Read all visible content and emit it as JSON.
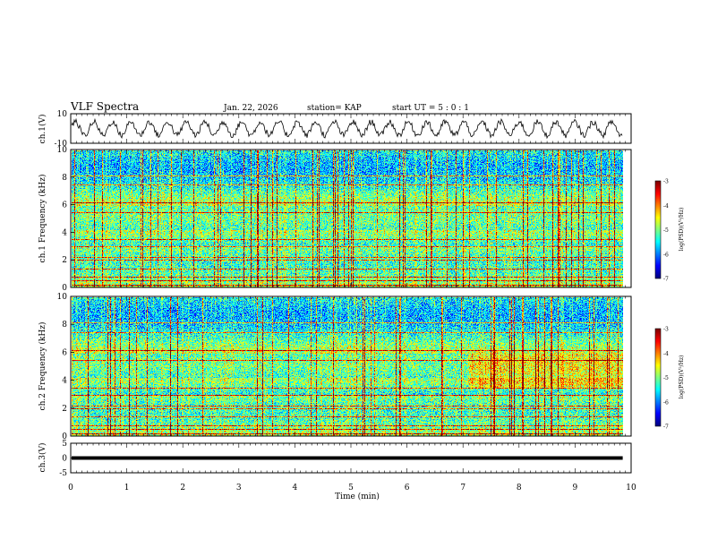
{
  "header": {
    "title": "VLF Spectra",
    "date": "Jan. 22, 2026",
    "station": "station= KAP",
    "start_time": "start UT =  5 : 0  : 1"
  },
  "chart_data": [
    {
      "type": "line",
      "name": "ch1-waveform",
      "ylabel": "ch.1(V)",
      "ylim": [
        -10,
        10
      ],
      "yticks": [
        "10",
        "-10"
      ],
      "x_range_min": [
        0,
        9.85
      ],
      "description_of_signal": "oscillating waveform between about -6 and +6 V, periodic ~0.33 min"
    },
    {
      "type": "heatmap",
      "name": "ch1-spectrogram",
      "ylabel": "ch.1 Frequency (kHz)",
      "ylim": [
        0,
        10
      ],
      "yticks": [
        "0",
        "2",
        "4",
        "6",
        "8",
        "10"
      ],
      "x_range_min": [
        0,
        9.85
      ],
      "colorbar": {
        "label": "log(PSD)(V²/Hz)",
        "range": [
          -7,
          -3
        ],
        "ticks": [
          "-3",
          "-4",
          "-5",
          "-6",
          "-7"
        ]
      }
    },
    {
      "type": "heatmap",
      "name": "ch2-spectrogram",
      "ylabel": "ch.2 Frequency (kHz)",
      "ylim": [
        0,
        10
      ],
      "yticks": [
        "0",
        "2",
        "4",
        "6",
        "8",
        "10"
      ],
      "x_range_min": [
        0,
        9.85
      ],
      "colorbar": {
        "label": "log(PSD)(V²/Hz)",
        "range": [
          -7,
          -3
        ],
        "ticks": [
          "-3",
          "-4",
          "-5",
          "-6",
          "-7"
        ]
      }
    },
    {
      "type": "line",
      "name": "ch3-signal",
      "ylabel": "ch.3(V)",
      "ylim": [
        -5,
        5
      ],
      "yticks": [
        "5",
        "0",
        "-5"
      ],
      "x_range_min": [
        0,
        9.85
      ],
      "value_band": [
        -0.6,
        0.6
      ]
    }
  ],
  "xaxis": {
    "label": "Time (min)",
    "range": [
      0,
      10
    ],
    "ticks": [
      "0",
      "1",
      "2",
      "3",
      "4",
      "5",
      "6",
      "7",
      "8",
      "9",
      "10"
    ]
  },
  "colors": {
    "trace": "#000000",
    "axis": "#000000"
  }
}
